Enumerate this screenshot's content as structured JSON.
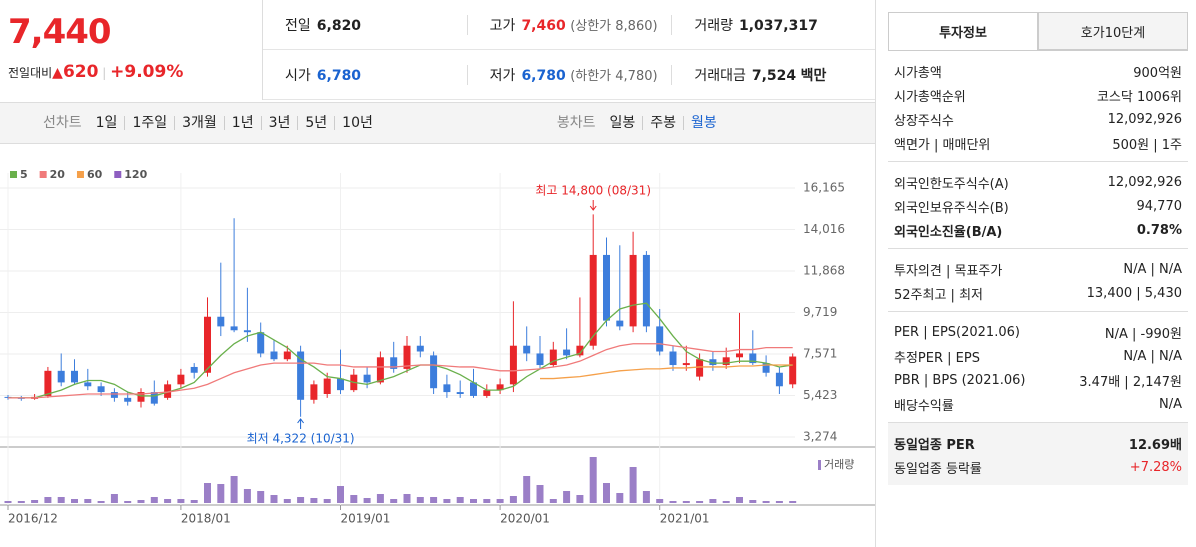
{
  "quote": {
    "price": "7,440",
    "change_label": "전일대비",
    "change": "620",
    "change_pct": "+9.09%"
  },
  "summary": [
    [
      {
        "label": "전일",
        "value": "6,820"
      },
      {
        "label": "고가",
        "value": "7,460",
        "note": "(상한가 8,860)"
      },
      {
        "label": "거래량",
        "value": "1,037,317"
      }
    ],
    [
      {
        "label": "시가",
        "value": "6,780"
      },
      {
        "label": "저가",
        "value": "6,780",
        "note": "(하한가 4,780)"
      },
      {
        "label": "거래대금",
        "value": "7,524",
        "unit": "백만"
      }
    ]
  ],
  "toolbar": {
    "line_label": "선차트",
    "line_periods": [
      "1일",
      "1주일",
      "3개월",
      "1년",
      "3년",
      "5년",
      "10년"
    ],
    "candle_label": "봉차트",
    "candle_periods": [
      "일봉",
      "주봉",
      "월봉"
    ]
  },
  "chart_data": {
    "type": "candlestick",
    "up_color": "#e8262a",
    "down_color": "#3c7ddc",
    "volume_color": "#9b7fc7",
    "ylim": [
      3274,
      16165
    ],
    "yticks": [
      {
        "value": 16165,
        "label": "16,165"
      },
      {
        "value": 14016,
        "label": "14,016"
      },
      {
        "value": 11868,
        "label": "11,868"
      },
      {
        "value": 9719,
        "label": "9,719"
      },
      {
        "value": 7571,
        "label": "7,571"
      },
      {
        "value": 5423,
        "label": "5,423"
      },
      {
        "value": 3274,
        "label": "3,274"
      }
    ],
    "categories": [
      "2016/12",
      null,
      null,
      null,
      null,
      null,
      null,
      null,
      null,
      null,
      null,
      null,
      null,
      "2018/01",
      null,
      null,
      null,
      null,
      null,
      null,
      null,
      null,
      null,
      null,
      null,
      "2019/01",
      null,
      null,
      null,
      null,
      null,
      null,
      null,
      null,
      null,
      null,
      null,
      "2020/01",
      null,
      null,
      null,
      null,
      null,
      null,
      null,
      null,
      null,
      null,
      null,
      "2021/01",
      null,
      null,
      null,
      null,
      null,
      null,
      null,
      null,
      null,
      null
    ],
    "open": [
      5350,
      5300,
      5250,
      5400,
      6700,
      6700,
      6100,
      5900,
      5600,
      5300,
      5100,
      5600,
      5300,
      6000,
      6900,
      6600,
      9500,
      9000,
      8800,
      8700,
      7700,
      7300,
      7700,
      5200,
      5500,
      6300,
      5700,
      6500,
      6100,
      7400,
      6800,
      8000,
      7500,
      6000,
      5600,
      6100,
      5400,
      5700,
      6000,
      8000,
      7600,
      7000,
      7800,
      7500,
      8000,
      12700,
      9300,
      9000,
      12700,
      9000,
      7700,
      7000,
      6400,
      7300,
      7000,
      7400,
      7600,
      7100,
      6600,
      6000
    ],
    "high": [
      5450,
      5400,
      5500,
      6900,
      7600,
      7300,
      6800,
      6100,
      5800,
      5600,
      5800,
      6200,
      6200,
      6800,
      7100,
      10500,
      12300,
      14600,
      11000,
      9200,
      8300,
      8000,
      8000,
      6200,
      6600,
      7800,
      6800,
      6900,
      7700,
      8200,
      8500,
      8500,
      7700,
      6500,
      6200,
      6800,
      6000,
      6300,
      10300,
      9000,
      8500,
      8200,
      8900,
      10500,
      14800,
      13600,
      13200,
      13900,
      12900,
      9900,
      8000,
      8000,
      7600,
      7700,
      7900,
      9700,
      8800,
      7500,
      6900,
      7600
    ],
    "low": [
      5200,
      5150,
      5200,
      5300,
      5900,
      6000,
      5700,
      5400,
      5100,
      4900,
      4800,
      4900,
      5200,
      5800,
      6300,
      6400,
      8500,
      8700,
      8200,
      7400,
      7200,
      7200,
      4322,
      5000,
      5300,
      5500,
      5600,
      5800,
      6000,
      6600,
      6600,
      7400,
      5500,
      5300,
      5300,
      5300,
      5300,
      5500,
      5600,
      7200,
      6800,
      6900,
      7300,
      7400,
      7800,
      9000,
      8800,
      8700,
      8700,
      7500,
      6700,
      6700,
      6200,
      6700,
      6800,
      7100,
      7000,
      6400,
      5500,
      5800
    ],
    "close": [
      5300,
      5250,
      5350,
      6700,
      6100,
      6100,
      5900,
      5600,
      5300,
      5100,
      5600,
      5000,
      6000,
      6500,
      6600,
      9500,
      9000,
      8800,
      8700,
      7600,
      7300,
      7700,
      5200,
      6000,
      6300,
      5700,
      6500,
      6100,
      7400,
      6800,
      8000,
      7700,
      5800,
      5600,
      5500,
      5400,
      5700,
      6000,
      8000,
      7600,
      7000,
      7800,
      7500,
      8000,
      12700,
      9300,
      9000,
      12700,
      9000,
      7700,
      7000,
      7100,
      7300,
      7000,
      7400,
      7600,
      7100,
      6600,
      5900,
      7440
    ],
    "volume": [
      2,
      2,
      3,
      6,
      6,
      4,
      4,
      2,
      9,
      2,
      3,
      6,
      4,
      4,
      3,
      20,
      19,
      27,
      14,
      12,
      8,
      4,
      6,
      5,
      4,
      17,
      8,
      5,
      9,
      4,
      9,
      6,
      6,
      4,
      6,
      4,
      4,
      4,
      7,
      27,
      18,
      4,
      12,
      8,
      46,
      20,
      10,
      36,
      12,
      4,
      2,
      2,
      2,
      4,
      2,
      6,
      3,
      2,
      2,
      2
    ],
    "series": [
      {
        "name": "5",
        "color": "#6ab04c",
        "values": [
          5300,
          5300,
          5300,
          5500,
          5700,
          6000,
          6200,
          6200,
          6000,
          5600,
          5400,
          5400,
          5600,
          5800,
          6100,
          6800,
          7500,
          8100,
          8500,
          8700,
          8300,
          7900,
          7300,
          6900,
          6400,
          6300,
          6100,
          6000,
          6200,
          6400,
          6700,
          7000,
          7000,
          6800,
          6500,
          6100,
          5700,
          5700,
          5900,
          6400,
          6800,
          7200,
          7400,
          7600,
          8500,
          9300,
          9900,
          10100,
          10200,
          9400,
          8500,
          7700,
          7300,
          7100,
          7100,
          7200,
          7200,
          7100,
          6900,
          7000
        ]
      },
      {
        "name": "20",
        "color": "#f07a7a",
        "values": [
          5300,
          5300,
          5300,
          5350,
          5400,
          5450,
          5500,
          5500,
          5500,
          5500,
          5500,
          5550,
          5600,
          5700,
          5800,
          6000,
          6300,
          6600,
          6800,
          7000,
          7100,
          7100,
          7100,
          7100,
          7000,
          7000,
          6900,
          6900,
          6900,
          6900,
          6950,
          7000,
          7000,
          6950,
          6900,
          6900,
          6800,
          6700,
          6700,
          6750,
          6800,
          6900,
          7000,
          7200,
          7500,
          7800,
          8000,
          8100,
          8100,
          8100,
          8000,
          7900,
          7800,
          7700,
          7700,
          7800,
          7800,
          7900,
          7900,
          7900
        ]
      },
      {
        "name": "60",
        "color": "#f5a04a",
        "values": [
          null,
          null,
          null,
          null,
          null,
          null,
          null,
          null,
          null,
          null,
          null,
          null,
          null,
          null,
          null,
          null,
          null,
          null,
          null,
          null,
          null,
          null,
          null,
          null,
          null,
          null,
          null,
          null,
          null,
          null,
          null,
          null,
          null,
          null,
          null,
          null,
          null,
          null,
          null,
          null,
          6300,
          6300,
          6350,
          6400,
          6500,
          6600,
          6700,
          6750,
          6800,
          6800,
          6850,
          6850,
          6900,
          6900,
          6900,
          6950,
          6950,
          7000,
          7000,
          7000
        ]
      },
      {
        "name": "120",
        "color": "#8e5fc1",
        "values": [
          null,
          null,
          null,
          null,
          null,
          null,
          null,
          null,
          null,
          null,
          null,
          null,
          null,
          null,
          null,
          null,
          null,
          null,
          null,
          null,
          null,
          null,
          null,
          null,
          null,
          null,
          null,
          null,
          null,
          null,
          null,
          null,
          null,
          null,
          null,
          null,
          null,
          null,
          null,
          null,
          null,
          null,
          null,
          null,
          null,
          null,
          null,
          null,
          null,
          null,
          null,
          null,
          null,
          null,
          null,
          null,
          null,
          null,
          null,
          null
        ]
      }
    ],
    "annotations": [
      "최고 14,800 (08/31)",
      "최저 4,322 (10/31)"
    ],
    "volume_label": "거래량"
  },
  "panel": {
    "tabs": [
      "투자정보",
      "호가10단계"
    ],
    "groups": [
      [
        {
          "label": "시가총액",
          "value": "900억원"
        },
        {
          "label": "시가총액순위",
          "value": "코스닥 1006위"
        },
        {
          "label": "상장주식수",
          "value": "12,092,926"
        },
        {
          "label": "액면가 | 매매단위",
          "value": "500원 | 1주"
        }
      ],
      [
        {
          "label": "외국인한도주식수(A)",
          "value": "12,092,926"
        },
        {
          "label": "외국인보유주식수(B)",
          "value": "94,770"
        },
        {
          "label": "외국인소진율(B/A)",
          "value": "0.78%"
        }
      ],
      [
        {
          "label": "투자의견 | 목표주가",
          "value": "N/A | N/A"
        },
        {
          "label": "52주최고 | 최저",
          "value": "13,400 | 5,430"
        }
      ],
      [
        {
          "label": "PER | EPS(2021.06)",
          "value": "N/A | -990원"
        },
        {
          "label": "추정PER | EPS",
          "value": "N/A | N/A"
        },
        {
          "label": "PBR | BPS (2021.06)",
          "value": "3.47배 | 2,147원"
        },
        {
          "label": "배당수익률",
          "value": "N/A"
        }
      ],
      [
        {
          "label": "동일업종 PER",
          "value": "12.69배"
        },
        {
          "label": "동일업종 등락률",
          "value": "+7.28%"
        }
      ]
    ]
  }
}
